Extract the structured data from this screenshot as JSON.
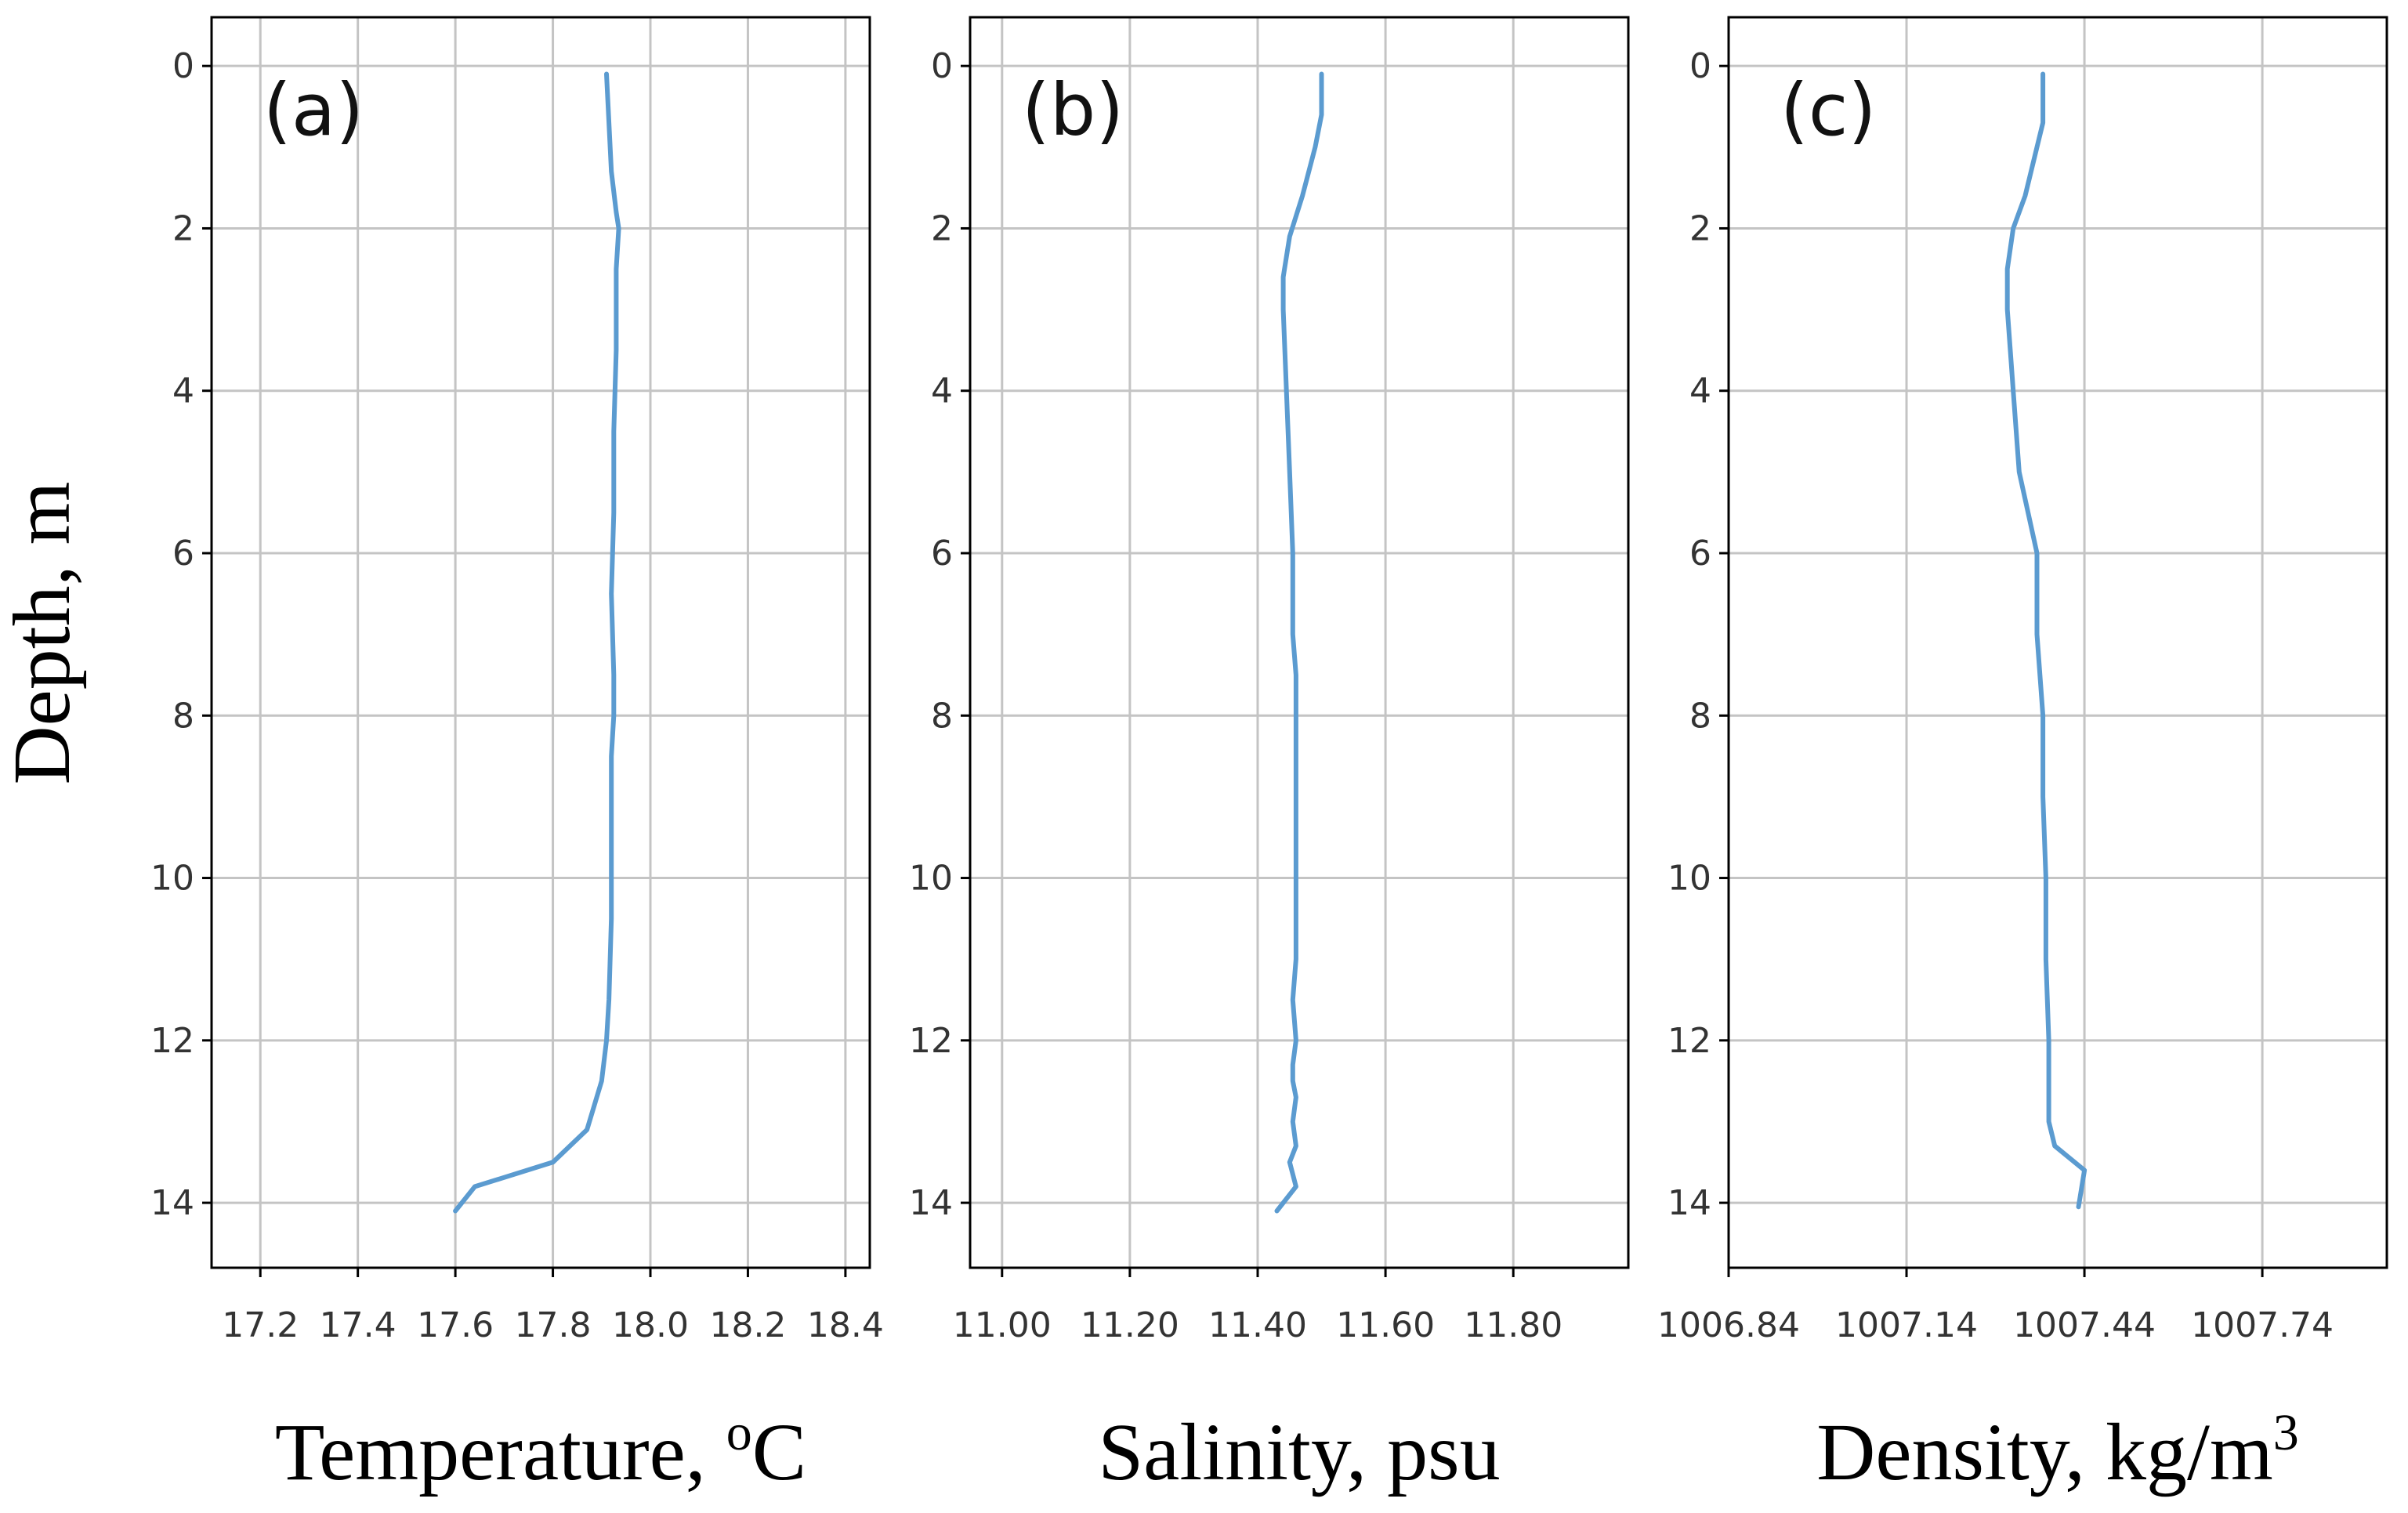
{
  "ylabel": "Depth, m",
  "chart_data": [
    {
      "type": "line",
      "panel_label": "(a)",
      "xlabel": "Temperature, ",
      "xlabel_sup": "o",
      "xlabel_after": "C",
      "ylabel": "Depth, m",
      "xlim": [
        17.1,
        18.45
      ],
      "ylim": [
        14.8,
        -0.6
      ],
      "y_inverted": true,
      "grid": true,
      "xticks": [
        17.2,
        17.4,
        17.6,
        17.8,
        18.0,
        18.2,
        18.4
      ],
      "xtick_labels": [
        "17.2",
        "17.4",
        "17.6",
        "17.8",
        "18.0",
        "18.2",
        "18.4"
      ],
      "yticks": [
        0,
        2,
        4,
        6,
        8,
        10,
        12,
        14
      ],
      "ytick_labels": [
        "0",
        "2",
        "4",
        "6",
        "8",
        "10",
        "12",
        "14"
      ],
      "color": "#5b9bd0",
      "series": [
        {
          "x": [
            17.91,
            17.92,
            17.93,
            17.935,
            17.93,
            17.93,
            17.925,
            17.925,
            17.92,
            17.925,
            17.925,
            17.92,
            17.92,
            17.92,
            17.915,
            17.91,
            17.9,
            17.87,
            17.8,
            17.64,
            17.6
          ],
          "y": [
            0.1,
            1.3,
            1.8,
            2.0,
            2.5,
            3.5,
            4.5,
            5.5,
            6.5,
            7.5,
            8.0,
            8.5,
            9.5,
            10.5,
            11.5,
            12.0,
            12.5,
            13.1,
            13.5,
            13.8,
            14.1
          ]
        }
      ]
    },
    {
      "type": "line",
      "panel_label": "(b)",
      "xlabel": "Salinity, psu",
      "ylabel": "Depth, m",
      "xlim": [
        10.95,
        11.98
      ],
      "ylim": [
        14.8,
        -0.6
      ],
      "y_inverted": true,
      "grid": true,
      "xticks": [
        11.0,
        11.2,
        11.4,
        11.6,
        11.8
      ],
      "xtick_labels": [
        "11.00",
        "11.20",
        "11.40",
        "11.60",
        "11.80"
      ],
      "yticks": [
        0,
        2,
        4,
        6,
        8,
        10,
        12,
        14
      ],
      "ytick_labels": [
        "0",
        "2",
        "4",
        "6",
        "8",
        "10",
        "12",
        "14"
      ],
      "color": "#5b9bd0",
      "series": [
        {
          "x": [
            11.5,
            11.5,
            11.49,
            11.47,
            11.45,
            11.44,
            11.44,
            11.445,
            11.45,
            11.455,
            11.455,
            11.455,
            11.46,
            11.46,
            11.46,
            11.46,
            11.46,
            11.455,
            11.46,
            11.455,
            11.455,
            11.46,
            11.455,
            11.46,
            11.45,
            11.46,
            11.43
          ],
          "y": [
            0.1,
            0.6,
            1.0,
            1.6,
            2.1,
            2.6,
            3.0,
            4.0,
            5.0,
            6.0,
            6.5,
            7.0,
            7.5,
            8.0,
            9.0,
            10.0,
            11.0,
            11.5,
            12.0,
            12.3,
            12.5,
            12.7,
            13.0,
            13.3,
            13.5,
            13.8,
            14.1
          ]
        }
      ]
    },
    {
      "type": "line",
      "panel_label": "(c)",
      "xlabel": "Density, kg/m",
      "xlabel_sup": "3",
      "xlabel_after": "",
      "ylabel": "Depth, m",
      "xlim": [
        1006.84,
        1007.95
      ],
      "ylim": [
        14.8,
        -0.6
      ],
      "y_inverted": true,
      "grid": true,
      "xticks": [
        1006.84,
        1007.14,
        1007.44,
        1007.74
      ],
      "xtick_labels": [
        "1006.84",
        "1007.14",
        "1007.44",
        "1007.74"
      ],
      "yticks": [
        0,
        2,
        4,
        6,
        8,
        10,
        12,
        14
      ],
      "ytick_labels": [
        "0",
        "2",
        "4",
        "6",
        "8",
        "10",
        "12",
        "14"
      ],
      "color": "#5b9bd0",
      "series": [
        {
          "x": [
            1007.37,
            1007.37,
            1007.36,
            1007.34,
            1007.32,
            1007.31,
            1007.31,
            1007.32,
            1007.33,
            1007.36,
            1007.36,
            1007.365,
            1007.37,
            1007.37,
            1007.375,
            1007.375,
            1007.38,
            1007.38,
            1007.38,
            1007.39,
            1007.44,
            1007.43
          ],
          "y": [
            0.1,
            0.7,
            1.0,
            1.6,
            2.0,
            2.5,
            3.0,
            4.0,
            5.0,
            6.0,
            7.0,
            7.5,
            8.0,
            9.0,
            10.0,
            11.0,
            12.0,
            12.5,
            13.0,
            13.3,
            13.6,
            14.05
          ]
        }
      ]
    }
  ]
}
